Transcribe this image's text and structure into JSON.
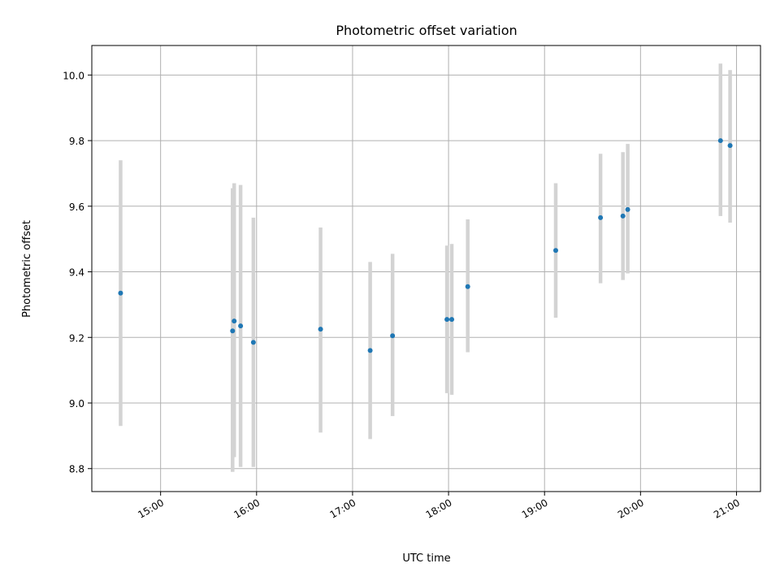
{
  "chart_data": {
    "type": "scatter",
    "title": "Photometric offset variation",
    "xlabel": "UTC time",
    "ylabel": "Photometric offset",
    "x_ticks": [
      "15:00",
      "16:00",
      "17:00",
      "18:00",
      "19:00",
      "20:00",
      "21:00"
    ],
    "y_ticks": [
      "8.8",
      "9.0",
      "9.2",
      "9.4",
      "9.6",
      "9.8",
      "10.0"
    ],
    "xlim": [
      "14:17",
      "21:15"
    ],
    "ylim": [
      8.73,
      10.09
    ],
    "grid": true,
    "points": [
      {
        "x": "14:35",
        "y": 9.335,
        "low": 8.93,
        "high": 9.74
      },
      {
        "x": "15:45",
        "y": 9.22,
        "low": 8.79,
        "high": 9.655
      },
      {
        "x": "15:46",
        "y": 9.25,
        "low": 8.835,
        "high": 9.67
      },
      {
        "x": "15:50",
        "y": 9.235,
        "low": 8.805,
        "high": 9.665
      },
      {
        "x": "15:58",
        "y": 9.185,
        "low": 8.805,
        "high": 9.565
      },
      {
        "x": "16:40",
        "y": 9.225,
        "low": 8.91,
        "high": 9.535
      },
      {
        "x": "17:11",
        "y": 9.16,
        "low": 8.89,
        "high": 9.43
      },
      {
        "x": "17:25",
        "y": 9.205,
        "low": 8.96,
        "high": 9.455
      },
      {
        "x": "17:59",
        "y": 9.255,
        "low": 9.03,
        "high": 9.48
      },
      {
        "x": "18:02",
        "y": 9.255,
        "low": 9.025,
        "high": 9.485
      },
      {
        "x": "18:12",
        "y": 9.355,
        "low": 9.155,
        "high": 9.56
      },
      {
        "x": "19:07",
        "y": 9.465,
        "low": 9.26,
        "high": 9.67
      },
      {
        "x": "19:35",
        "y": 9.565,
        "low": 9.365,
        "high": 9.76
      },
      {
        "x": "19:49",
        "y": 9.57,
        "low": 9.375,
        "high": 9.765
      },
      {
        "x": "19:52",
        "y": 9.59,
        "low": 9.395,
        "high": 9.79
      },
      {
        "x": "20:50",
        "y": 9.8,
        "low": 9.57,
        "high": 10.035
      },
      {
        "x": "20:56",
        "y": 9.785,
        "low": 9.55,
        "high": 10.015
      }
    ],
    "colors": {
      "point": "#1f77b4",
      "errorbar": "#d3d3d3",
      "grid": "#b0b0b0",
      "axis": "#000000"
    }
  }
}
